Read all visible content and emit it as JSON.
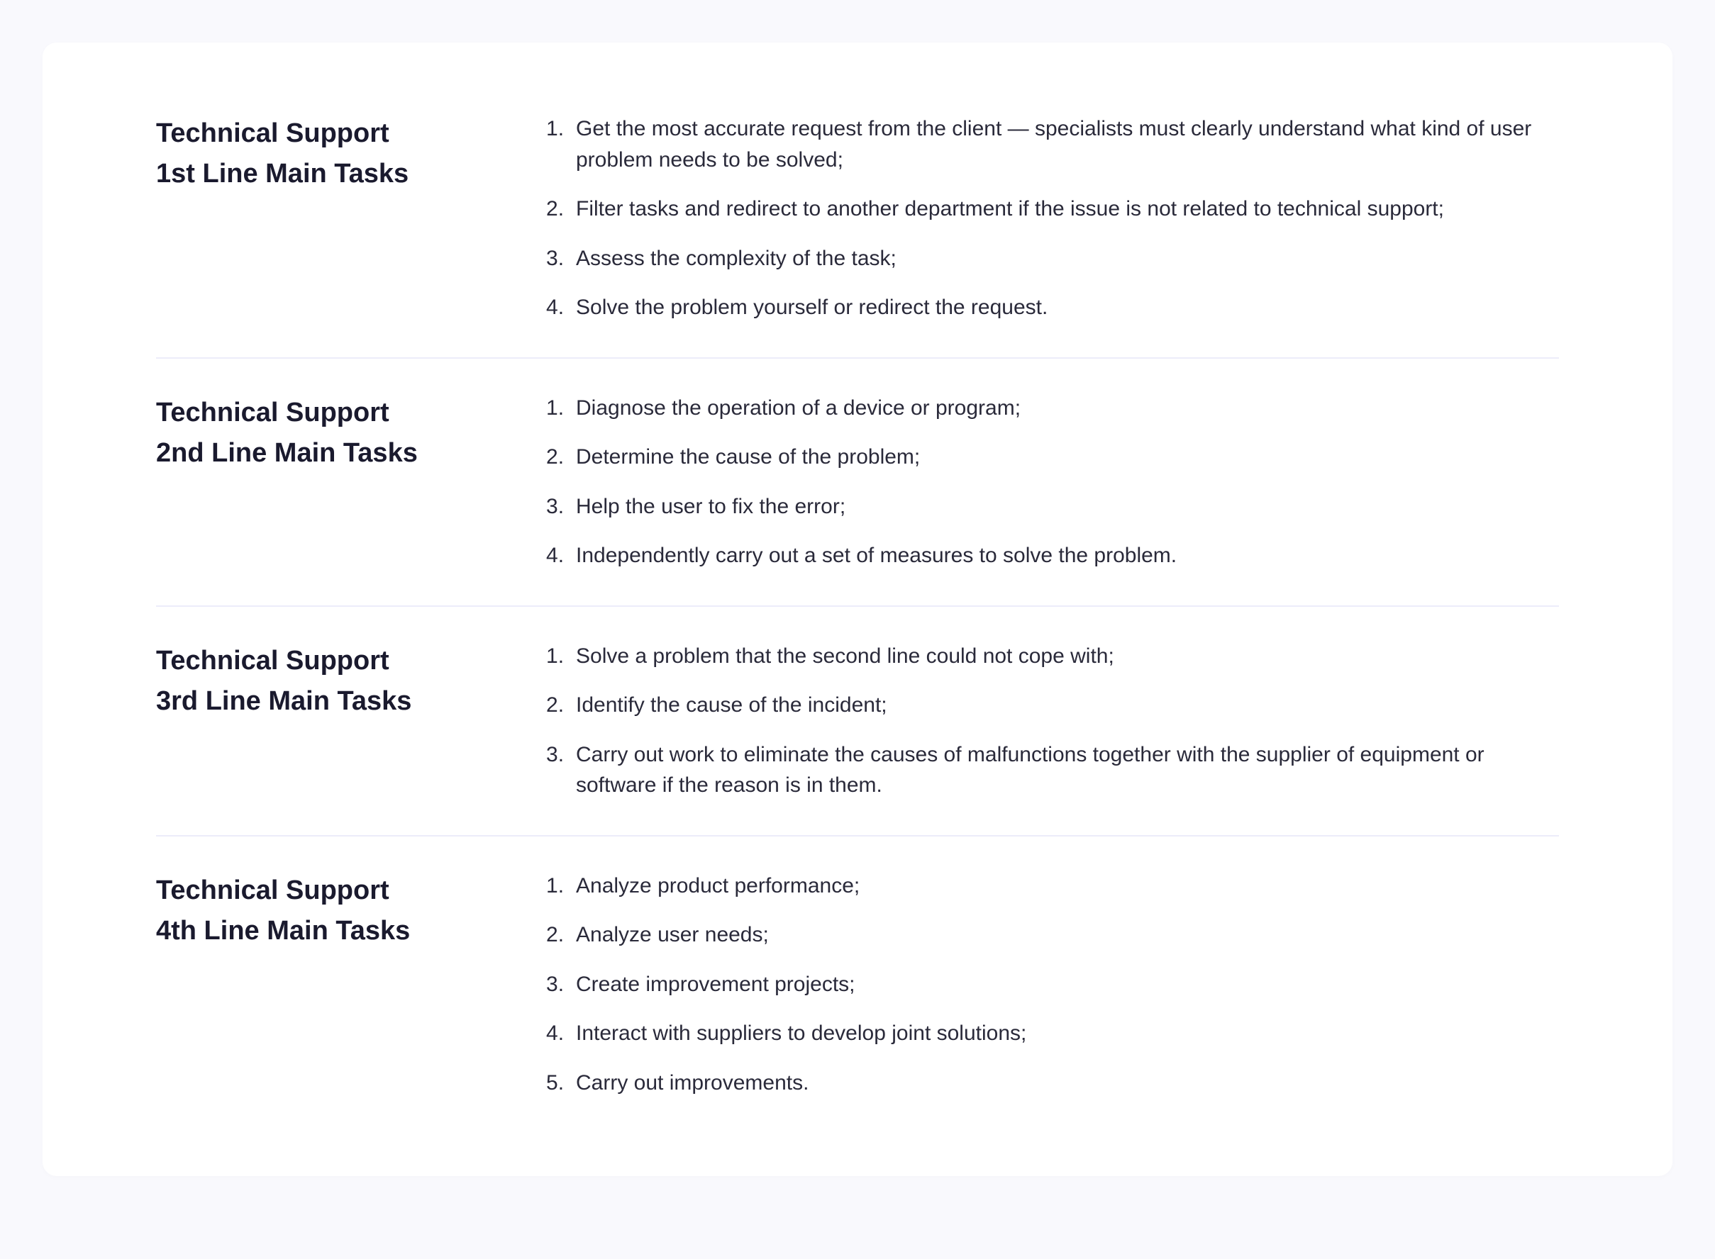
{
  "page": {
    "background_color": "#f9f9fd",
    "card_background": "#ffffff",
    "divider_color": "#ececfa",
    "title_color": "#1a1a2e",
    "text_color": "#2a2a3a",
    "title_fontsize": 38,
    "body_fontsize": 30
  },
  "sections": [
    {
      "title_line1": "Technical Support",
      "title_line2": "1st Line Main Tasks",
      "items": [
        "Get the most accurate request from the client — specialists must clearly understand what kind of user problem needs to be solved;",
        "Filter tasks and redirect to another department if the issue is not related to technical support;",
        "Assess the complexity of the task;",
        "Solve the problem yourself or redirect the request."
      ]
    },
    {
      "title_line1": "Technical Support",
      "title_line2": "2nd Line Main Tasks",
      "items": [
        "Diagnose the operation of a device or program;",
        "Determine the cause of the problem;",
        "Help the user to fix the error;",
        "Independently carry out a set of measures to solve the problem."
      ]
    },
    {
      "title_line1": "Technical Support",
      "title_line2": "3rd Line Main Tasks",
      "items": [
        "Solve a problem that the second line could not cope with;",
        "Identify the cause of the incident;",
        "Carry out work to eliminate the causes of malfunctions together with the supplier of equipment or software if the reason is in them."
      ]
    },
    {
      "title_line1": "Technical Support",
      "title_line2": "4th Line Main Tasks",
      "items": [
        "Analyze product performance;",
        "Analyze user needs;",
        "Create improvement projects;",
        "Interact with suppliers to develop joint solutions;",
        "Carry out improvements."
      ]
    }
  ]
}
